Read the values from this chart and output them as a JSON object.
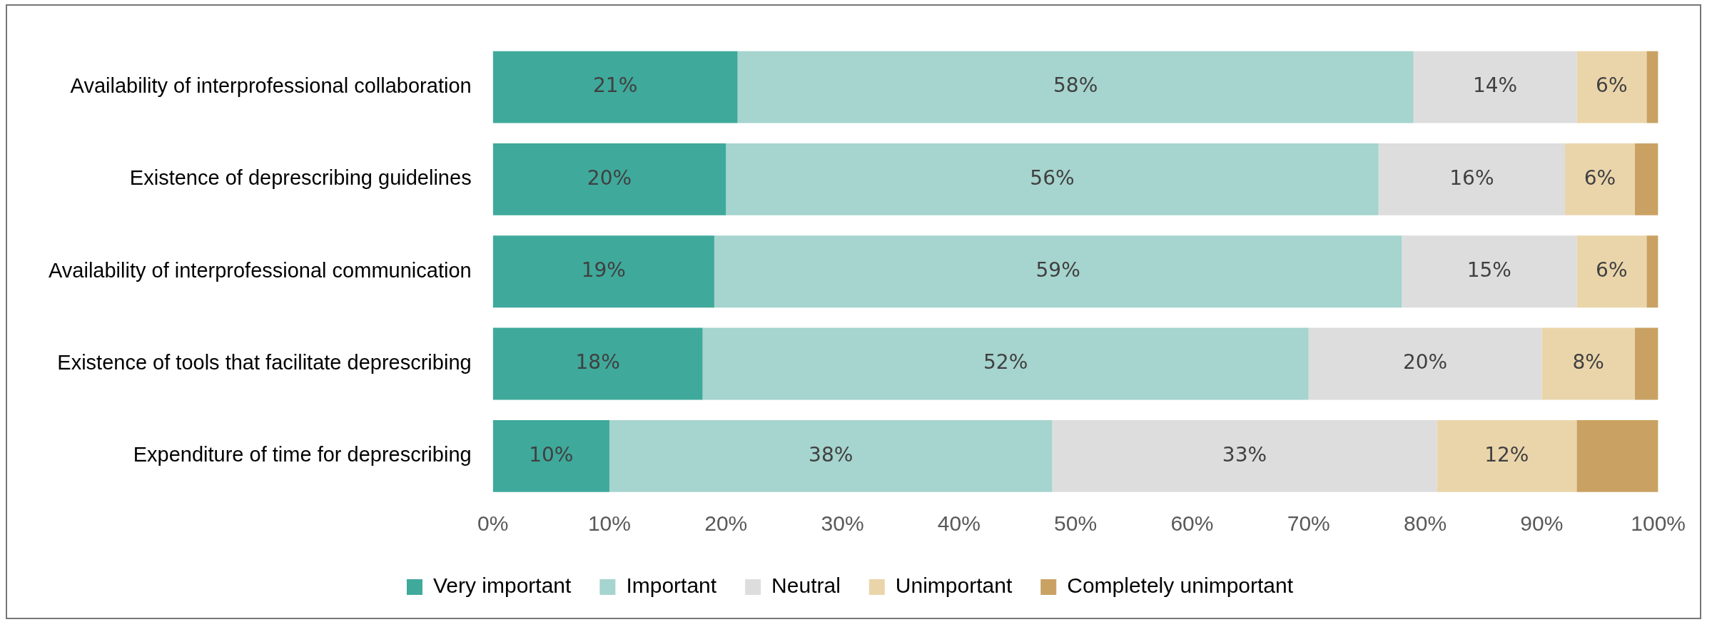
{
  "chart_data": {
    "type": "bar",
    "orientation": "horizontal",
    "stacked": true,
    "categories": [
      "Availability of interprofessional collaboration",
      "Existence of deprescribing guidelines",
      "Availability of interprofessional communication",
      "Existence of tools that facilitate deprescribing",
      "Expenditure of time for deprescribing"
    ],
    "series": [
      {
        "name": "Very important",
        "color": "#3fa99b",
        "values": [
          21,
          20,
          19,
          18,
          10
        ],
        "value_labels": [
          "21%",
          "20%",
          "19%",
          "18%",
          "10%"
        ]
      },
      {
        "name": "Important",
        "color": "#a6d4ce",
        "values": [
          58,
          56,
          59,
          52,
          38
        ],
        "value_labels": [
          "58%",
          "56%",
          "59%",
          "52%",
          "38%"
        ]
      },
      {
        "name": "Neutral",
        "color": "#dddddd",
        "values": [
          14,
          16,
          15,
          20,
          33
        ],
        "value_labels": [
          "14%",
          "16%",
          "15%",
          "20%",
          "33%"
        ]
      },
      {
        "name": "Unimportant",
        "color": "#ead5ab",
        "values": [
          6,
          6,
          6,
          8,
          12
        ],
        "value_labels": [
          "6%",
          "6%",
          "6%",
          "8%",
          "12%"
        ]
      },
      {
        "name": "Completely unimportant",
        "color": "#c9a263",
        "values": [
          1,
          2,
          1,
          2,
          7
        ]
      }
    ],
    "xlim": [
      0,
      100
    ],
    "xticks": [
      {
        "value": 0,
        "label": "0%"
      },
      {
        "value": 10,
        "label": "10%"
      },
      {
        "value": 20,
        "label": "20%"
      },
      {
        "value": 30,
        "label": "30%"
      },
      {
        "value": 40,
        "label": "40%"
      },
      {
        "value": 50,
        "label": "50%"
      },
      {
        "value": 60,
        "label": "60%"
      },
      {
        "value": 70,
        "label": "70%"
      },
      {
        "value": 80,
        "label": "80%"
      },
      {
        "value": 90,
        "label": "90%"
      },
      {
        "value": 100,
        "label": "100%"
      }
    ],
    "grid": false,
    "legend": "bottom"
  }
}
